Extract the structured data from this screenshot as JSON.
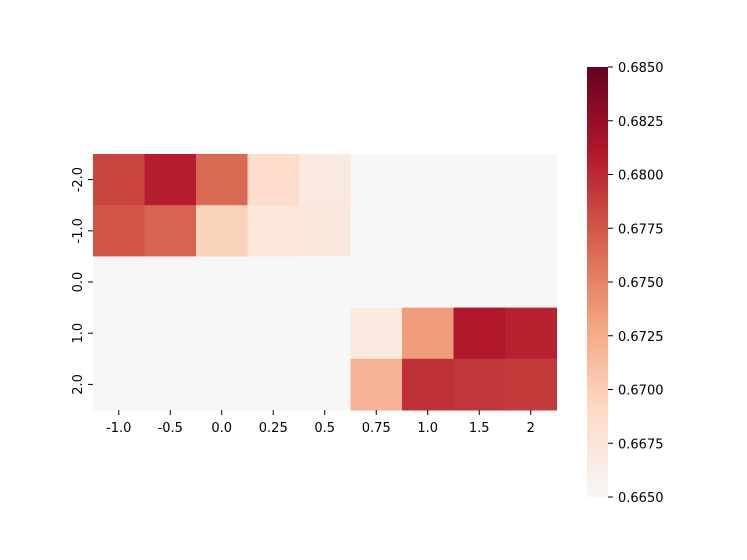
{
  "chart_data": {
    "type": "heatmap",
    "title": "",
    "xlabel": "",
    "ylabel": "",
    "x_categories": [
      "-1.0",
      "-0.5",
      "0.0",
      "0.25",
      "0.5",
      "0.75",
      "1.0",
      "1.5",
      "2"
    ],
    "y_categories": [
      "-2.0",
      "-1.0",
      "0.0",
      "1.0",
      "2.0"
    ],
    "values": [
      [
        0.6785,
        0.6807,
        0.6765,
        0.6688,
        0.667,
        0.665,
        0.665,
        0.665,
        0.665
      ],
      [
        0.6775,
        0.6768,
        0.6697,
        0.6674,
        0.6672,
        0.665,
        0.665,
        0.665,
        0.665
      ],
      [
        0.665,
        0.665,
        0.665,
        0.665,
        0.665,
        0.665,
        0.665,
        0.665,
        0.665
      ],
      [
        0.665,
        0.665,
        0.665,
        0.665,
        0.665,
        0.6669,
        0.6735,
        0.6811,
        0.6805
      ],
      [
        0.665,
        0.665,
        0.665,
        0.665,
        0.665,
        0.672,
        0.6797,
        0.6793,
        0.6791
      ]
    ],
    "colorbar": {
      "min": 0.665,
      "max": 0.685,
      "ticks": [
        "0.6650",
        "0.6675",
        "0.6700",
        "0.6725",
        "0.6750",
        "0.6775",
        "0.6800",
        "0.6825",
        "0.6850"
      ],
      "colormap": "RdBu_r (upper half)",
      "colors": [
        "#f7f7f7",
        "#fddbc7",
        "#f4a582",
        "#d6604d",
        "#b2182b",
        "#67001f"
      ]
    },
    "grid": false,
    "legend": "colorbar-right"
  }
}
